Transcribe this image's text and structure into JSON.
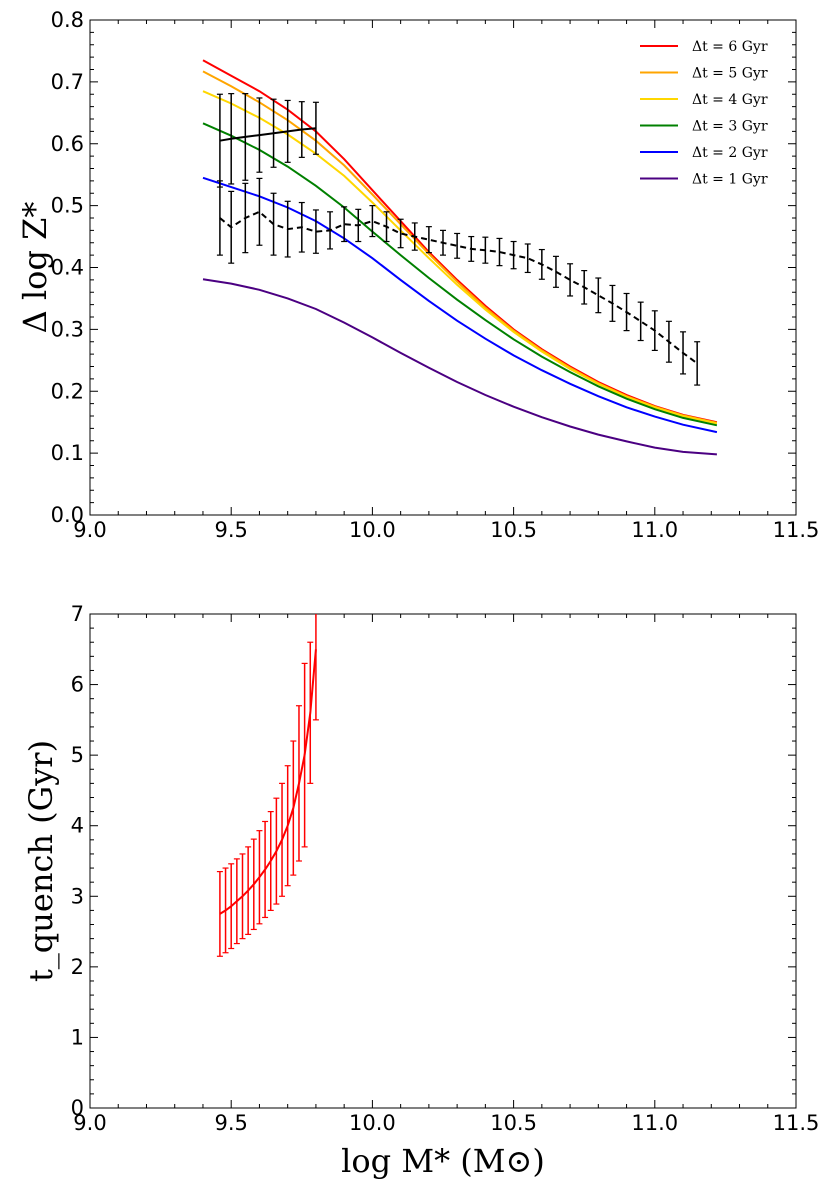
{
  "chart_data": [
    {
      "type": "line",
      "panel": "top",
      "xlabel": "",
      "ylabel": "Δ log Z*",
      "xlim": [
        9.0,
        11.5
      ],
      "ylim": [
        0.0,
        0.8
      ],
      "xticks": [
        9.0,
        9.5,
        10.0,
        10.5,
        11.0,
        11.5
      ],
      "xtick_labels": [
        "9.0",
        "9.5",
        "10.0",
        "10.5",
        "11.0",
        "11.5"
      ],
      "yticks": [
        0.0,
        0.1,
        0.2,
        0.3,
        0.4,
        0.5,
        0.6,
        0.7,
        0.8
      ],
      "ytick_labels": [
        "0.0",
        "0.1",
        "0.2",
        "0.3",
        "0.4",
        "0.5",
        "0.6",
        "0.7",
        "0.8"
      ],
      "legend_position": "top-right",
      "series": [
        {
          "name": "Δt = 6 Gyr",
          "color": "#ff0000",
          "x": [
            9.4,
            9.5,
            9.6,
            9.7,
            9.8,
            9.9,
            10.0,
            10.1,
            10.2,
            10.3,
            10.4,
            10.5,
            10.6,
            10.7,
            10.8,
            10.9,
            11.0,
            11.1,
            11.22
          ],
          "y": [
            0.735,
            0.71,
            0.685,
            0.655,
            0.62,
            0.575,
            0.525,
            0.475,
            0.425,
            0.38,
            0.338,
            0.3,
            0.268,
            0.24,
            0.215,
            0.194,
            0.176,
            0.162,
            0.15
          ]
        },
        {
          "name": "Δt = 5 Gyr",
          "color": "#ffa500",
          "x": [
            9.4,
            9.5,
            9.6,
            9.7,
            9.8,
            9.9,
            10.0,
            10.1,
            10.2,
            10.3,
            10.4,
            10.5,
            10.6,
            10.7,
            10.8,
            10.9,
            11.0,
            11.1,
            11.22
          ],
          "y": [
            0.717,
            0.693,
            0.667,
            0.638,
            0.605,
            0.565,
            0.518,
            0.47,
            0.422,
            0.377,
            0.335,
            0.298,
            0.266,
            0.238,
            0.213,
            0.192,
            0.175,
            0.161,
            0.149
          ]
        },
        {
          "name": "Δt = 4 Gyr",
          "color": "#ffd700",
          "x": [
            9.4,
            9.5,
            9.6,
            9.7,
            9.8,
            9.9,
            10.0,
            10.1,
            10.2,
            10.3,
            10.4,
            10.5,
            10.6,
            10.7,
            10.8,
            10.9,
            11.0,
            11.1,
            11.22
          ],
          "y": [
            0.685,
            0.665,
            0.642,
            0.615,
            0.584,
            0.548,
            0.505,
            0.46,
            0.415,
            0.372,
            0.332,
            0.296,
            0.264,
            0.236,
            0.212,
            0.191,
            0.174,
            0.16,
            0.148
          ]
        },
        {
          "name": "Δt = 3 Gyr",
          "color": "#008000",
          "x": [
            9.4,
            9.5,
            9.6,
            9.7,
            9.8,
            9.9,
            10.0,
            10.1,
            10.2,
            10.3,
            10.4,
            10.5,
            10.6,
            10.7,
            10.8,
            10.9,
            11.0,
            11.1,
            11.22
          ],
          "y": [
            0.633,
            0.613,
            0.59,
            0.563,
            0.532,
            0.497,
            0.458,
            0.42,
            0.383,
            0.348,
            0.315,
            0.284,
            0.256,
            0.231,
            0.208,
            0.188,
            0.171,
            0.157,
            0.145
          ]
        },
        {
          "name": "Δt = 2 Gyr",
          "color": "#0000ff",
          "x": [
            9.4,
            9.5,
            9.6,
            9.7,
            9.8,
            9.9,
            10.0,
            10.1,
            10.2,
            10.3,
            10.4,
            10.5,
            10.6,
            10.7,
            10.8,
            10.9,
            11.0,
            11.1,
            11.22
          ],
          "y": [
            0.545,
            0.53,
            0.515,
            0.497,
            0.475,
            0.447,
            0.415,
            0.38,
            0.346,
            0.314,
            0.285,
            0.258,
            0.234,
            0.212,
            0.192,
            0.174,
            0.159,
            0.146,
            0.134
          ]
        },
        {
          "name": "Δt = 1 Gyr",
          "color": "#4b0082",
          "x": [
            9.4,
            9.5,
            9.6,
            9.7,
            9.8,
            9.9,
            10.0,
            10.1,
            10.2,
            10.3,
            10.4,
            10.5,
            10.6,
            10.7,
            10.8,
            10.9,
            11.0,
            11.1,
            11.22
          ],
          "y": [
            0.381,
            0.374,
            0.364,
            0.35,
            0.333,
            0.311,
            0.287,
            0.262,
            0.238,
            0.215,
            0.194,
            0.175,
            0.158,
            0.143,
            0.13,
            0.119,
            0.109,
            0.102,
            0.098
          ]
        }
      ],
      "error_series": [
        {
          "name": "solid-data",
          "color": "#000000",
          "style": "solid",
          "x": [
            9.46,
            9.5,
            9.55,
            9.6,
            9.65,
            9.7,
            9.75,
            9.8
          ],
          "y": [
            0.605,
            0.608,
            0.611,
            0.614,
            0.617,
            0.62,
            0.623,
            0.625
          ],
          "err": [
            0.075,
            0.073,
            0.07,
            0.06,
            0.055,
            0.05,
            0.045,
            0.042
          ]
        },
        {
          "name": "dashed-data",
          "color": "#000000",
          "style": "dashed",
          "x": [
            9.46,
            9.5,
            9.55,
            9.6,
            9.65,
            9.7,
            9.75,
            9.8,
            9.85,
            9.9,
            9.95,
            10.0,
            10.05,
            10.1,
            10.15,
            10.2,
            10.25,
            10.3,
            10.35,
            10.4,
            10.45,
            10.5,
            10.55,
            10.6,
            10.65,
            10.7,
            10.75,
            10.8,
            10.85,
            10.9,
            10.95,
            11.0,
            11.05,
            11.1,
            11.15
          ],
          "y": [
            0.48,
            0.465,
            0.48,
            0.49,
            0.47,
            0.462,
            0.465,
            0.458,
            0.46,
            0.47,
            0.468,
            0.475,
            0.466,
            0.455,
            0.45,
            0.445,
            0.44,
            0.435,
            0.43,
            0.428,
            0.425,
            0.42,
            0.415,
            0.405,
            0.393,
            0.38,
            0.368,
            0.355,
            0.342,
            0.328,
            0.313,
            0.298,
            0.28,
            0.262,
            0.245
          ],
          "err": [
            0.06,
            0.058,
            0.056,
            0.054,
            0.05,
            0.045,
            0.04,
            0.035,
            0.03,
            0.028,
            0.026,
            0.025,
            0.024,
            0.023,
            0.022,
            0.021,
            0.02,
            0.02,
            0.02,
            0.021,
            0.022,
            0.022,
            0.023,
            0.024,
            0.025,
            0.026,
            0.027,
            0.028,
            0.029,
            0.03,
            0.031,
            0.032,
            0.033,
            0.034,
            0.035
          ]
        }
      ]
    },
    {
      "type": "line",
      "panel": "bottom",
      "xlabel": "log M* (M⊙)",
      "ylabel": "t_quench (Gyr)",
      "xlim": [
        9.0,
        11.5
      ],
      "ylim": [
        0,
        7
      ],
      "xticks": [
        9.0,
        9.5,
        10.0,
        10.5,
        11.0,
        11.5
      ],
      "xtick_labels": [
        "9.0",
        "9.5",
        "10.0",
        "10.5",
        "11.0",
        "11.5"
      ],
      "yticks": [
        0,
        1,
        2,
        3,
        4,
        5,
        6,
        7
      ],
      "ytick_labels": [
        "0",
        "1",
        "2",
        "3",
        "4",
        "5",
        "6",
        "7"
      ],
      "error_series": [
        {
          "name": "t-quench",
          "color": "#ff0000",
          "style": "solid",
          "x": [
            9.46,
            9.48,
            9.5,
            9.52,
            9.54,
            9.56,
            9.58,
            9.6,
            9.62,
            9.64,
            9.66,
            9.68,
            9.7,
            9.72,
            9.74,
            9.76,
            9.78,
            9.8
          ],
          "y": [
            2.75,
            2.8,
            2.86,
            2.93,
            3.0,
            3.08,
            3.17,
            3.27,
            3.38,
            3.5,
            3.64,
            3.8,
            4.0,
            4.25,
            4.6,
            5.0,
            5.6,
            6.5
          ],
          "err": [
            0.6,
            0.6,
            0.6,
            0.6,
            0.6,
            0.62,
            0.64,
            0.66,
            0.68,
            0.7,
            0.75,
            0.8,
            0.85,
            0.95,
            1.1,
            1.3,
            1.0,
            1.0
          ]
        }
      ]
    }
  ]
}
